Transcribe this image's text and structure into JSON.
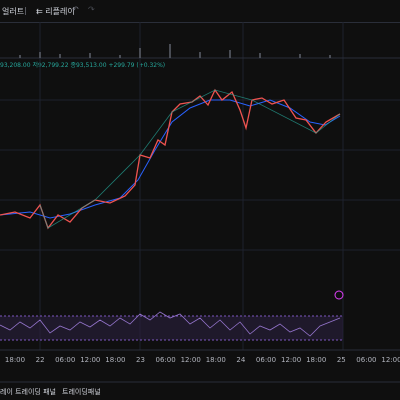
{
  "toolbar": {
    "alert": "얼러트",
    "replay": "리플레이"
  },
  "legend": {
    "low": "저92,799.22",
    "close": "종93,513.00",
    "change": "+299.79 (+0.32%)",
    "prefix": "93,208.00"
  },
  "time_axis": [
    "18:00",
    "22",
    "06:00",
    "12:00",
    "18:00",
    "23",
    "06:00",
    "12:00",
    "18:00",
    "24",
    "06:00",
    "12:00",
    "18:00",
    "25",
    "06:00",
    "12:00"
  ],
  "footer": {
    "tab1": "레이 트레이딩 패널",
    "tab2": "트레이딩패널"
  }
}
